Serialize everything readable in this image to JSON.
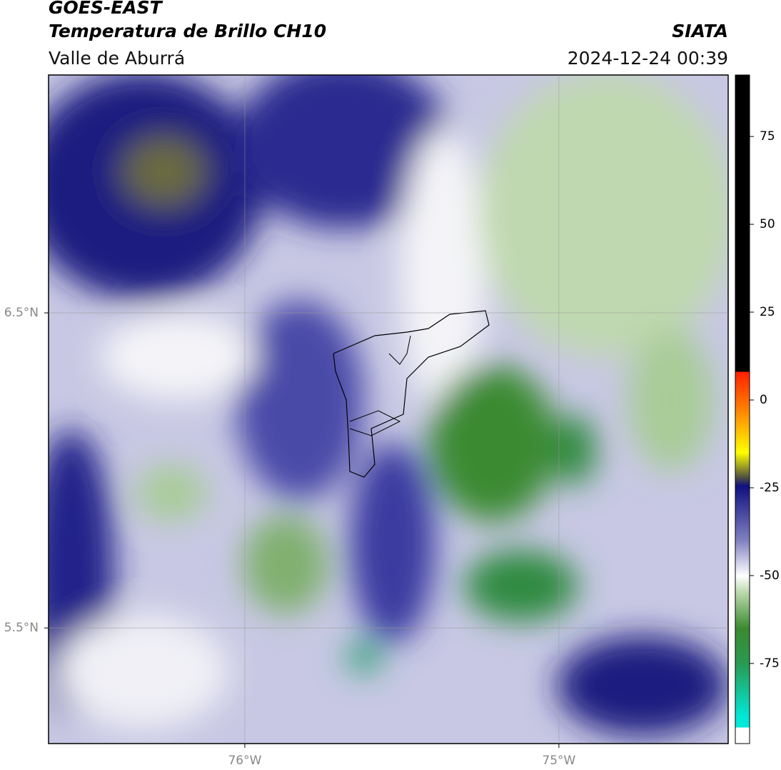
{
  "header": {
    "title": "GOES-EAST",
    "subtitle": "Temperatura de Brillo CH10",
    "region": "Valle de Aburrá",
    "source": "SIATA",
    "datetime": "2024-12-24 00:39"
  },
  "map": {
    "lonlim": [
      -76.625,
      -74.461
    ],
    "latlim": [
      5.133,
      7.255
    ],
    "lon_ticks": [
      {
        "value": -76,
        "label": "76°W"
      },
      {
        "value": -75,
        "label": "75°W"
      }
    ],
    "lat_ticks": [
      {
        "value": 6.5,
        "label": "6.5°N"
      },
      {
        "value": 5.5,
        "label": "5.5°N"
      }
    ]
  },
  "colorbar": {
    "lim": [
      -97.8,
      92.5
    ],
    "ticks": [
      75,
      50,
      25,
      0,
      -25,
      -50,
      -75
    ]
  }
}
